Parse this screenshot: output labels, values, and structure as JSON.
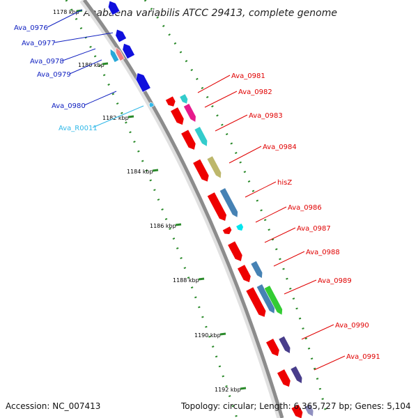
{
  "title": "Anabaena variabilis ATCC 29413, complete genome",
  "footer": {
    "accession": "Accession: NC_007413",
    "stats": "Topology: circular; Length: 6,365,727 bp; Genes: 5,104"
  },
  "ticks": [
    "1178 kbp",
    "1180 kbp",
    "1182 kbp",
    "1184 kbp",
    "1186 kbp",
    "1188 kbp",
    "1190 kbp",
    "1192 kbp"
  ],
  "left_labels": [
    "Ava_0976",
    "Ava_0977",
    "Ava_0978",
    "Ava_0979",
    "Ava_0980",
    "Ava_R0011"
  ],
  "right_labels": [
    "Ava_0981",
    "Ava_0982",
    "Ava_0983",
    "Ava_0984",
    "hisZ",
    "Ava_0986",
    "Ava_0987",
    "Ava_0988",
    "Ava_0989",
    "Ava_0990",
    "Ava_0991"
  ],
  "colors": {
    "backbone": "#8c8c8c",
    "forward_gene": "#ee0000",
    "reverse_gene": "#1010dd",
    "rna": "#30b8e8",
    "cog_teal": "#33cccc",
    "cog_magenta": "#e61a8c",
    "cog_olive": "#bdb76b",
    "cog_steelblue": "#4682b4",
    "cog_cyan": "#00e5ee",
    "cog_green": "#33cc33",
    "cog_darkslate": "#483d8b",
    "tick_dots": "#2a8a2a"
  }
}
